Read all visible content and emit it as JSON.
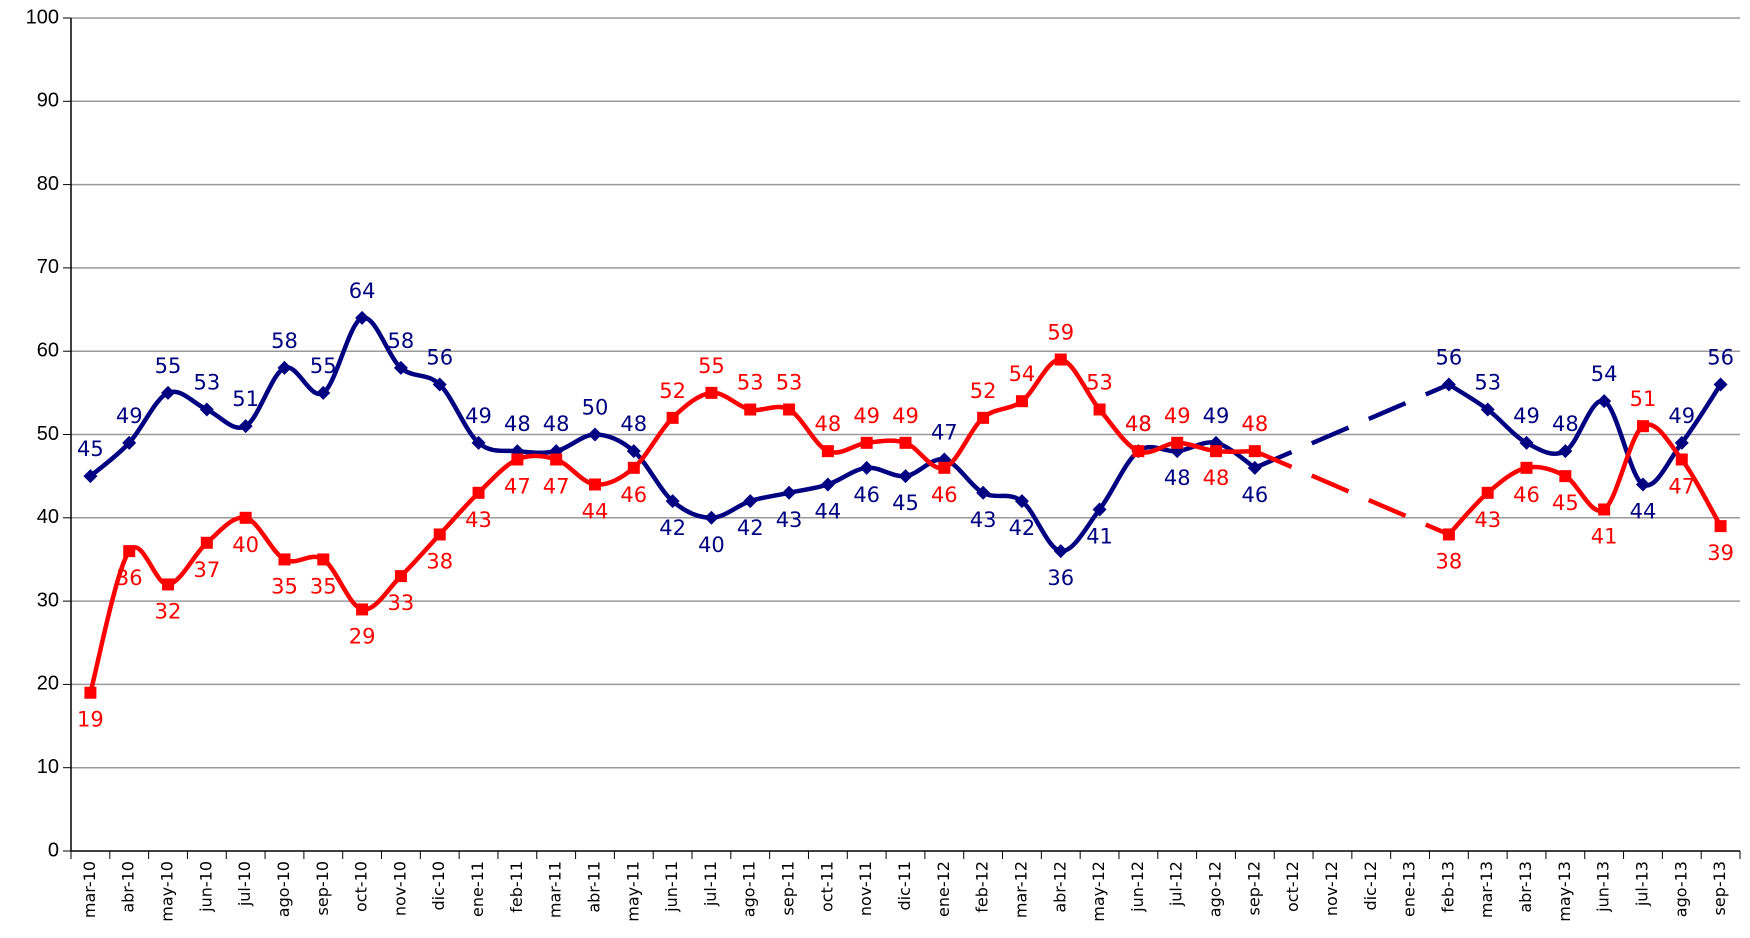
{
  "chart_data": {
    "type": "line",
    "categories": [
      "mar-10",
      "abr-10",
      "may-10",
      "jun-10",
      "jul-10",
      "ago-10",
      "sep-10",
      "oct-10",
      "nov-10",
      "dic-10",
      "ene-11",
      "feb-11",
      "mar-11",
      "abr-11",
      "may-11",
      "jun-11",
      "jul-11",
      "ago-11",
      "sep-11",
      "oct-11",
      "nov-11",
      "dic-11",
      "ene-12",
      "feb-12",
      "mar-12",
      "abr-12",
      "may-12",
      "jun-12",
      "jul-12",
      "ago-12",
      "sep-12",
      "oct-12",
      "nov-12",
      "dic-12",
      "ene-13",
      "feb-13",
      "mar-13",
      "abr-13",
      "may-13",
      "jun-13",
      "jul-13",
      "ago-13",
      "sep-13"
    ],
    "series": [
      {
        "color": "#000080",
        "marker": "diamond",
        "values": [
          45,
          49,
          55,
          53,
          51,
          58,
          55,
          64,
          58,
          56,
          49,
          48,
          48,
          50,
          48,
          42,
          40,
          42,
          43,
          44,
          46,
          45,
          47,
          43,
          42,
          36,
          41,
          48,
          48,
          49,
          46,
          null,
          null,
          null,
          null,
          56,
          53,
          49,
          48,
          54,
          44,
          49,
          56
        ]
      },
      {
        "color": "#ff0000",
        "marker": "square",
        "values": [
          19,
          36,
          32,
          37,
          40,
          35,
          35,
          29,
          33,
          38,
          43,
          47,
          47,
          44,
          46,
          52,
          55,
          53,
          53,
          48,
          49,
          49,
          46,
          52,
          54,
          59,
          53,
          48,
          49,
          48,
          48,
          null,
          null,
          null,
          null,
          38,
          43,
          46,
          45,
          41,
          51,
          47,
          39
        ]
      }
    ],
    "ylim": [
      0,
      100
    ],
    "yticks": [
      0,
      10,
      20,
      30,
      40,
      50,
      60,
      70,
      80,
      90,
      100
    ],
    "grid": true
  }
}
